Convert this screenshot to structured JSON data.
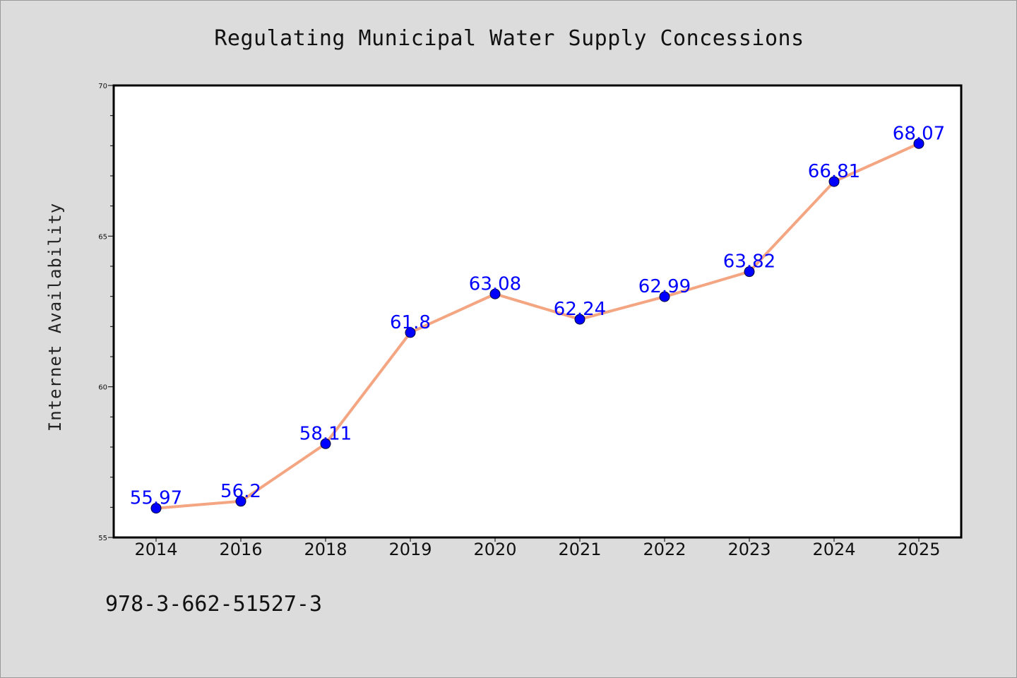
{
  "chart_data": {
    "type": "line",
    "title": "Regulating Municipal Water Supply Concessions",
    "xlabel": "",
    "ylabel": "Internet Availability",
    "categories": [
      "2014",
      "2016",
      "2018",
      "2019",
      "2020",
      "2021",
      "2022",
      "2023",
      "2024",
      "2025"
    ],
    "series": [
      {
        "values": [
          55.97,
          56.2,
          58.11,
          61.8,
          63.08,
          62.24,
          62.99,
          63.82,
          66.81,
          68.07
        ],
        "data_labels": [
          "55.97",
          "56.2",
          "58.11",
          "61.8",
          "63.08",
          "62.24",
          "62.99",
          "63.82",
          "66.81",
          "68.07"
        ],
        "line_color": "#f4a582",
        "marker_color": "#0000ff"
      }
    ],
    "ylim": [
      55,
      70
    ],
    "yticks": [
      "55",
      "60",
      "65",
      "70"
    ],
    "grid": false,
    "legend": "none",
    "background_color": "#dcdcdc",
    "plot_background_color": "#ffffff",
    "label_color": "#0000ff"
  },
  "footer": {
    "isbn": "978-3-662-51527-3"
  }
}
